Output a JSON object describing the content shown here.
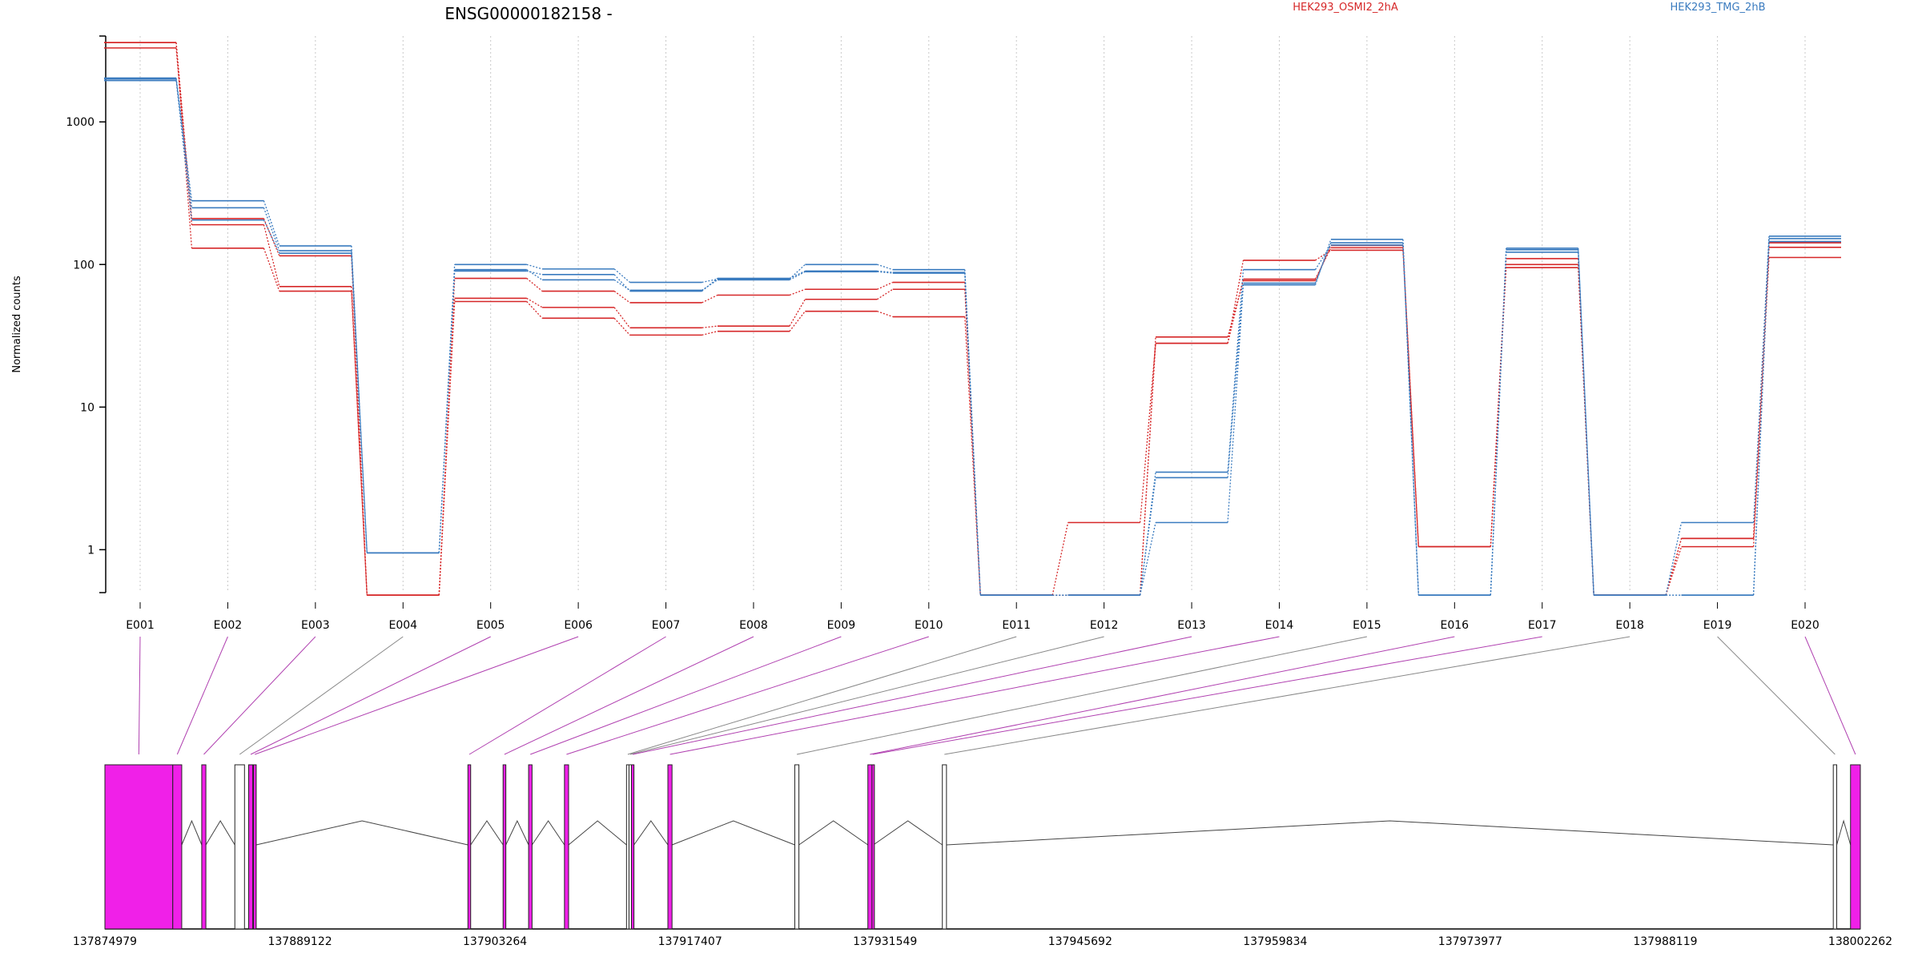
{
  "chart_data": {
    "type": "line",
    "title": "ENSG00000182158 -",
    "ylabel": "Normalized counts",
    "yscale": "log",
    "ylim": [
      0.5,
      4000
    ],
    "yticks": [
      1,
      10,
      100,
      1000
    ],
    "categories": [
      "E001",
      "E002",
      "E003",
      "E004",
      "E005",
      "E006",
      "E007",
      "E008",
      "E009",
      "E010",
      "E011",
      "E012",
      "E013",
      "E014",
      "E015",
      "E016",
      "E017",
      "E018",
      "E019",
      "E020"
    ],
    "grid": "vertical dotted",
    "conditions": [
      {
        "name": "HEK293_OSMI2_2hA",
        "color": "#d62728"
      },
      {
        "name": "HEK293_TMG_2hB",
        "color": "#3a7bbf"
      }
    ],
    "series": [
      {
        "condition": "HEK293_OSMI2_2hA",
        "values": [
          3600,
          130,
          65,
          0.48,
          55,
          42,
          32,
          34,
          47,
          43,
          0.48,
          1.55,
          28,
          107,
          126,
          1.05,
          95,
          0.48,
          1.05,
          112
        ]
      },
      {
        "condition": "HEK293_OSMI2_2hA",
        "values": [
          3300,
          190,
          70,
          0.48,
          58,
          50,
          36,
          37,
          57,
          67,
          0.48,
          0.48,
          28,
          79,
          131,
          1.05,
          100,
          0.48,
          1.2,
          132
        ]
      },
      {
        "condition": "HEK293_OSMI2_2hA",
        "values": [
          3600,
          210,
          115,
          0.48,
          80,
          65,
          54,
          61,
          67,
          75,
          0.48,
          0.48,
          31,
          77,
          136,
          1.05,
          110,
          0.48,
          1.2,
          142
        ]
      },
      {
        "condition": "HEK293_TMG_2hB",
        "values": [
          2000,
          280,
          135,
          0.95,
          100,
          93,
          75,
          79,
          100,
          92,
          0.48,
          0.48,
          1.55,
          72,
          150,
          0.48,
          130,
          0.48,
          1.55,
          158
        ]
      },
      {
        "condition": "HEK293_TMG_2hB",
        "values": [
          2030,
          250,
          125,
          0.95,
          90,
          85,
          65,
          80,
          90,
          88,
          0.48,
          0.48,
          3.2,
          74,
          142,
          0.48,
          127,
          0.48,
          0.48,
          152
        ]
      },
      {
        "condition": "HEK293_TMG_2hB",
        "values": [
          1950,
          205,
          120,
          0.95,
          92,
          78,
          66,
          78,
          89,
          87,
          0.48,
          0.48,
          3.5,
          92,
          137,
          0.48,
          122,
          0.48,
          0.48,
          145
        ]
      }
    ],
    "gene_model": {
      "genomic_ticks": [
        "137874979",
        "137889122",
        "137903264",
        "137917407",
        "137931549",
        "137945692",
        "137959834",
        "137973977",
        "137988119",
        "138002262"
      ],
      "range": [
        137874979,
        138002262
      ],
      "exons": [
        {
          "id": "E001",
          "start": 137874979,
          "end": 137879900,
          "color": "#f020e8"
        },
        {
          "id": "E002",
          "start": 137879900,
          "end": 137880550,
          "color": "#f020e8"
        },
        {
          "id": "E003",
          "start": 137882000,
          "end": 137882300,
          "color": "#f020e8"
        },
        {
          "id": "E004",
          "start": 137884400,
          "end": 137885100,
          "color": "#ffffff"
        },
        {
          "id": "E005",
          "start": 137885400,
          "end": 137885700,
          "color": "#f020e8"
        },
        {
          "id": "E006",
          "start": 137885750,
          "end": 137885950,
          "color": "#f020e8"
        },
        {
          "id": "E007",
          "start": 137901300,
          "end": 137901500,
          "color": "#f020e8"
        },
        {
          "id": "E008",
          "start": 137903850,
          "end": 137904050,
          "color": "#f020e8"
        },
        {
          "id": "E009",
          "start": 137905700,
          "end": 137905950,
          "color": "#f020e8"
        },
        {
          "id": "E010",
          "start": 137908300,
          "end": 137908600,
          "color": "#f020e8"
        },
        {
          "id": "E011",
          "start": 137912800,
          "end": 137912980,
          "color": "#ffffff"
        },
        {
          "id": "E012",
          "start": 137912980,
          "end": 137913160,
          "color": "#ffffff"
        },
        {
          "id": "E013",
          "start": 137913160,
          "end": 137913340,
          "color": "#f020e8"
        },
        {
          "id": "E014",
          "start": 137915800,
          "end": 137916100,
          "color": "#f020e8"
        },
        {
          "id": "E015",
          "start": 137925000,
          "end": 137925300,
          "color": "#ffffff"
        },
        {
          "id": "E016",
          "start": 137930300,
          "end": 137930600,
          "color": "#f020e8"
        },
        {
          "id": "E017",
          "start": 137930600,
          "end": 137930700,
          "color": "#f020e8"
        },
        {
          "id": "E018",
          "start": 137935700,
          "end": 137936000,
          "color": "#ffffff"
        },
        {
          "id": "E019",
          "start": 138000300,
          "end": 138000550,
          "color": "#ffffff"
        },
        {
          "id": "E020",
          "start": 138001550,
          "end": 138002262,
          "color": "#f020e8"
        }
      ]
    }
  }
}
